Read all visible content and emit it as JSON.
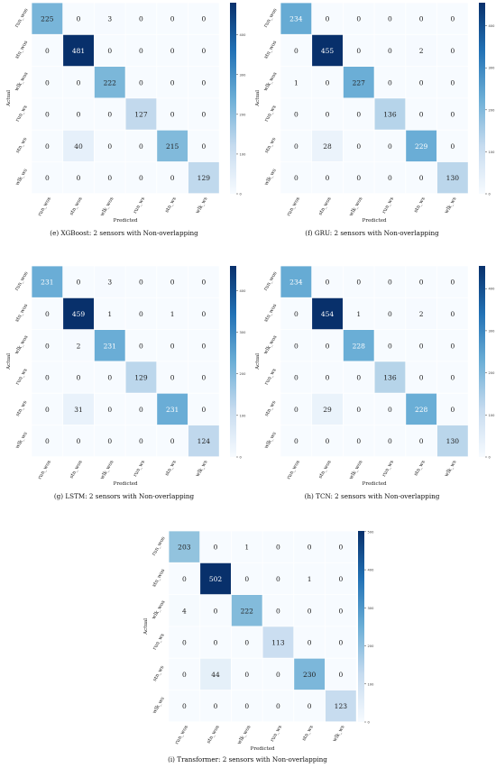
{
  "labels": [
    "run_wos",
    "stn_wos",
    "wlk_wos",
    "run_ws",
    "stn_ws",
    "wlk_ws"
  ],
  "axis": {
    "xlabel": "Predicted",
    "ylabel": "Actual"
  },
  "colors": {
    "low": "#f7fbff",
    "mid": "#6baed6",
    "high": "#08306b"
  },
  "chart_data": [
    {
      "type": "heatmap",
      "caption": "(e) XGBoost: 2 sensors with Non-overlapping",
      "matrix": [
        [
          225,
          0,
          3,
          0,
          0,
          0
        ],
        [
          0,
          481,
          0,
          0,
          0,
          0
        ],
        [
          0,
          0,
          222,
          0,
          0,
          0
        ],
        [
          0,
          0,
          0,
          127,
          0,
          0
        ],
        [
          0,
          40,
          0,
          0,
          215,
          0
        ],
        [
          0,
          0,
          0,
          0,
          0,
          129
        ]
      ],
      "colorbar": {
        "min": 0,
        "max": 481,
        "ticks": [
          0,
          100,
          200,
          300,
          400
        ]
      }
    },
    {
      "type": "heatmap",
      "caption": "(f) GRU: 2 sensors with Non-overlapping",
      "matrix": [
        [
          234,
          0,
          0,
          0,
          0,
          0
        ],
        [
          0,
          455,
          0,
          0,
          2,
          0
        ],
        [
          1,
          0,
          227,
          0,
          0,
          0
        ],
        [
          0,
          0,
          0,
          136,
          0,
          0
        ],
        [
          0,
          28,
          0,
          0,
          229,
          0
        ],
        [
          0,
          0,
          0,
          0,
          0,
          130
        ]
      ],
      "colorbar": {
        "min": 0,
        "max": 455,
        "ticks": [
          0,
          100,
          200,
          300,
          400
        ]
      }
    },
    {
      "type": "heatmap",
      "caption": "(g) LSTM: 2 sensors with Non-overlapping",
      "matrix": [
        [
          231,
          0,
          3,
          0,
          0,
          0
        ],
        [
          0,
          459,
          1,
          0,
          1,
          0
        ],
        [
          0,
          2,
          231,
          0,
          0,
          0
        ],
        [
          0,
          0,
          0,
          129,
          0,
          0
        ],
        [
          0,
          31,
          0,
          0,
          231,
          0
        ],
        [
          0,
          0,
          0,
          0,
          0,
          124
        ]
      ],
      "colorbar": {
        "min": 0,
        "max": 459,
        "ticks": [
          0,
          100,
          200,
          300,
          400
        ]
      }
    },
    {
      "type": "heatmap",
      "caption": "(h) TCN: 2 sensors with Non-overlapping",
      "matrix": [
        [
          234,
          0,
          0,
          0,
          0,
          0
        ],
        [
          0,
          454,
          1,
          0,
          2,
          0
        ],
        [
          0,
          0,
          228,
          0,
          0,
          0
        ],
        [
          0,
          0,
          0,
          136,
          0,
          0
        ],
        [
          0,
          29,
          0,
          0,
          228,
          0
        ],
        [
          0,
          0,
          0,
          0,
          0,
          130
        ]
      ],
      "colorbar": {
        "min": 0,
        "max": 454,
        "ticks": [
          0,
          100,
          200,
          300,
          400
        ]
      }
    },
    {
      "type": "heatmap",
      "caption": "(i) Transformer: 2 sensors with Non-overlapping",
      "matrix": [
        [
          203,
          0,
          1,
          0,
          0,
          0
        ],
        [
          0,
          502,
          0,
          0,
          1,
          0
        ],
        [
          4,
          0,
          222,
          0,
          0,
          0
        ],
        [
          0,
          0,
          0,
          113,
          0,
          0
        ],
        [
          0,
          44,
          0,
          0,
          230,
          0
        ],
        [
          0,
          0,
          0,
          0,
          0,
          123
        ]
      ],
      "colorbar": {
        "min": 0,
        "max": 502,
        "ticks": [
          0,
          100,
          200,
          300,
          400,
          500
        ]
      }
    }
  ]
}
